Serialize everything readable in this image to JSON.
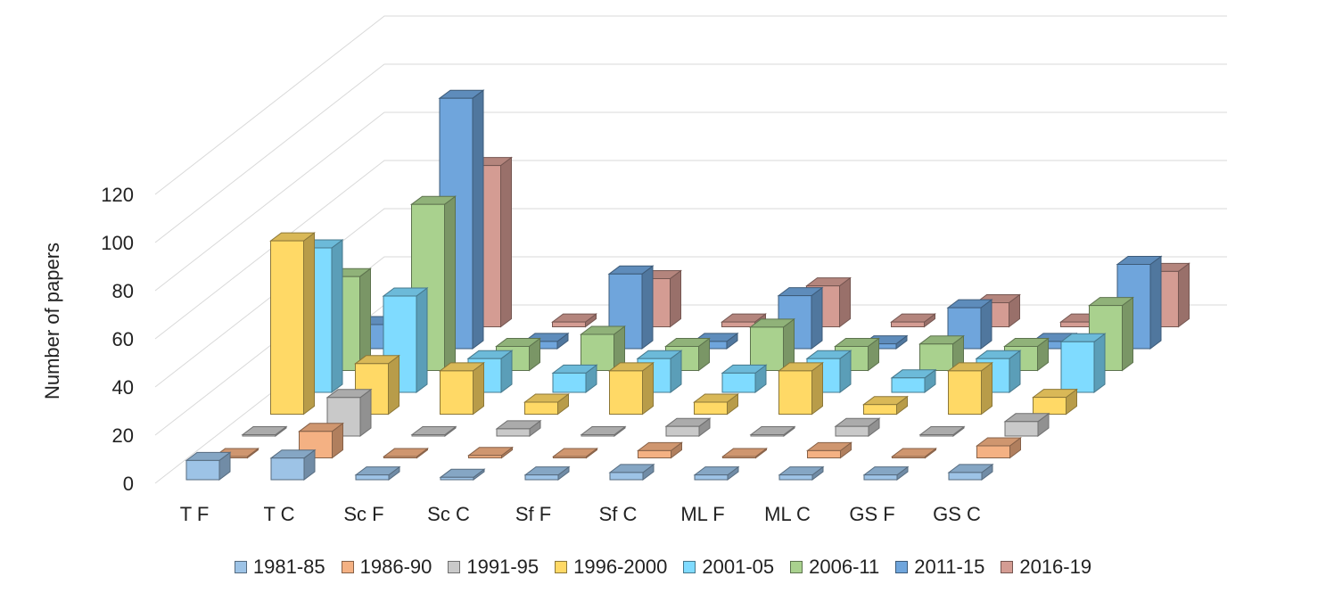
{
  "chart_data": {
    "type": "bar3d",
    "title": "",
    "ylabel": "Number of papers",
    "xlabel": "",
    "ylim": [
      0,
      120
    ],
    "yticks": [
      "0",
      "20",
      "40",
      "60",
      "80",
      "100",
      "120"
    ],
    "grid": true,
    "legend_position": "bottom",
    "categories": [
      "T F",
      "T C",
      "Sc F",
      "Sc C",
      "Sf F",
      "Sf C",
      "ML F",
      "ML C",
      "GS F",
      "GS C"
    ],
    "series": [
      {
        "name": "1981-85",
        "color": "#9DC3E6",
        "values": [
          8,
          9,
          2,
          1,
          2,
          3,
          2,
          2,
          2,
          3
        ]
      },
      {
        "name": "1986-90",
        "color": "#F4B183",
        "values": [
          0,
          11,
          0,
          1,
          0,
          3,
          0,
          3,
          0,
          5
        ]
      },
      {
        "name": "1991-95",
        "color": "#C9C9C9",
        "values": [
          0,
          16,
          0,
          3,
          0,
          4,
          0,
          4,
          0,
          6
        ]
      },
      {
        "name": "1996-2000",
        "color": "#FFD966",
        "values": [
          72,
          21,
          18,
          5,
          18,
          5,
          18,
          4,
          18,
          7
        ]
      },
      {
        "name": "2001-05",
        "color": "#7FDBFF",
        "values": [
          60,
          40,
          14,
          8,
          14,
          8,
          14,
          6,
          14,
          21
        ]
      },
      {
        "name": "2006-11",
        "color": "#A9D18E",
        "values": [
          39,
          69,
          10,
          15,
          10,
          18,
          10,
          11,
          10,
          27
        ]
      },
      {
        "name": "2011-15",
        "color": "#6FA5DC",
        "values": [
          10,
          104,
          3,
          31,
          3,
          22,
          2,
          17,
          3,
          35
        ]
      },
      {
        "name": "2016-19",
        "color": "#D49C93",
        "values": [
          0,
          67,
          2,
          20,
          2,
          17,
          2,
          10,
          2,
          23
        ]
      }
    ]
  }
}
